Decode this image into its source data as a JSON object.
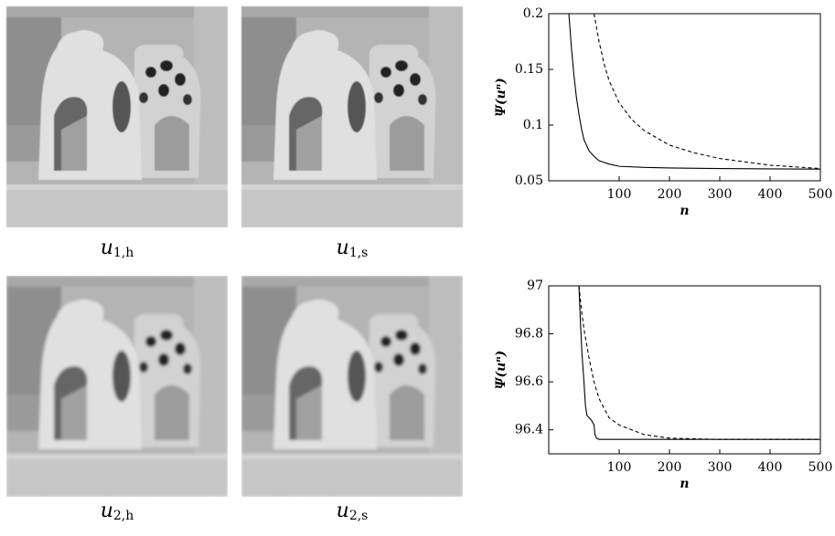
{
  "images": [
    {
      "caption": {
        "base": "u",
        "sub": "1,h"
      }
    },
    {
      "caption": {
        "base": "u",
        "sub": "1,s"
      }
    },
    {
      "caption": {
        "base": "u",
        "sub": "2,h"
      }
    },
    {
      "caption": {
        "base": "u",
        "sub": "2,s"
      }
    }
  ],
  "chart_data": [
    {
      "type": "line",
      "x_label": "n",
      "y_label": "Ψ(uⁿ)",
      "xlim": [
        -40,
        500
      ],
      "xticks": [
        100,
        200,
        300,
        400,
        500
      ],
      "ylim": [
        0.05,
        0.2
      ],
      "yticks": [
        0.05,
        0.1,
        0.15,
        0.2
      ],
      "series": [
        {
          "color": "#000000",
          "dashed": false,
          "x": [
            0,
            5,
            10,
            15,
            20,
            25,
            30,
            40,
            50,
            60,
            80,
            100,
            150,
            200,
            300,
            400,
            500
          ],
          "values": [
            0.2,
            0.17,
            0.145,
            0.125,
            0.11,
            0.097,
            0.087,
            0.077,
            0.072,
            0.068,
            0.065,
            0.063,
            0.062,
            0.0615,
            0.061,
            0.0607,
            0.0605
          ]
        },
        {
          "color": "#000000",
          "dashed": true,
          "x": [
            50,
            60,
            70,
            80,
            100,
            125,
            150,
            200,
            250,
            300,
            400,
            500
          ],
          "values": [
            0.2,
            0.175,
            0.155,
            0.14,
            0.12,
            0.105,
            0.095,
            0.082,
            0.075,
            0.07,
            0.064,
            0.061
          ]
        }
      ]
    },
    {
      "type": "line",
      "x_label": "n",
      "y_label": "Ψ(uⁿ)",
      "xlim": [
        -40,
        500
      ],
      "xticks": [
        100,
        200,
        300,
        400,
        500
      ],
      "ylim": [
        96.3,
        97
      ],
      "yticks": [
        96.4,
        96.6,
        96.8,
        97
      ],
      "series": [
        {
          "color": "#000000",
          "dashed": false,
          "x": [
            20,
            23,
            26,
            30,
            33,
            36,
            45,
            50,
            52,
            55,
            60,
            100,
            200,
            300,
            500
          ],
          "values": [
            97,
            96.85,
            96.72,
            96.6,
            96.5,
            96.46,
            96.44,
            96.42,
            96.38,
            96.365,
            96.36,
            96.36,
            96.36,
            96.36,
            96.36
          ]
        },
        {
          "color": "#000000",
          "dashed": true,
          "x": [
            20,
            25,
            30,
            40,
            50,
            60,
            80,
            100,
            150,
            200,
            300,
            400,
            500
          ],
          "values": [
            97,
            96.9,
            96.82,
            96.7,
            96.6,
            96.53,
            96.45,
            96.42,
            96.38,
            96.365,
            96.36,
            96.36,
            96.36
          ]
        }
      ]
    }
  ]
}
